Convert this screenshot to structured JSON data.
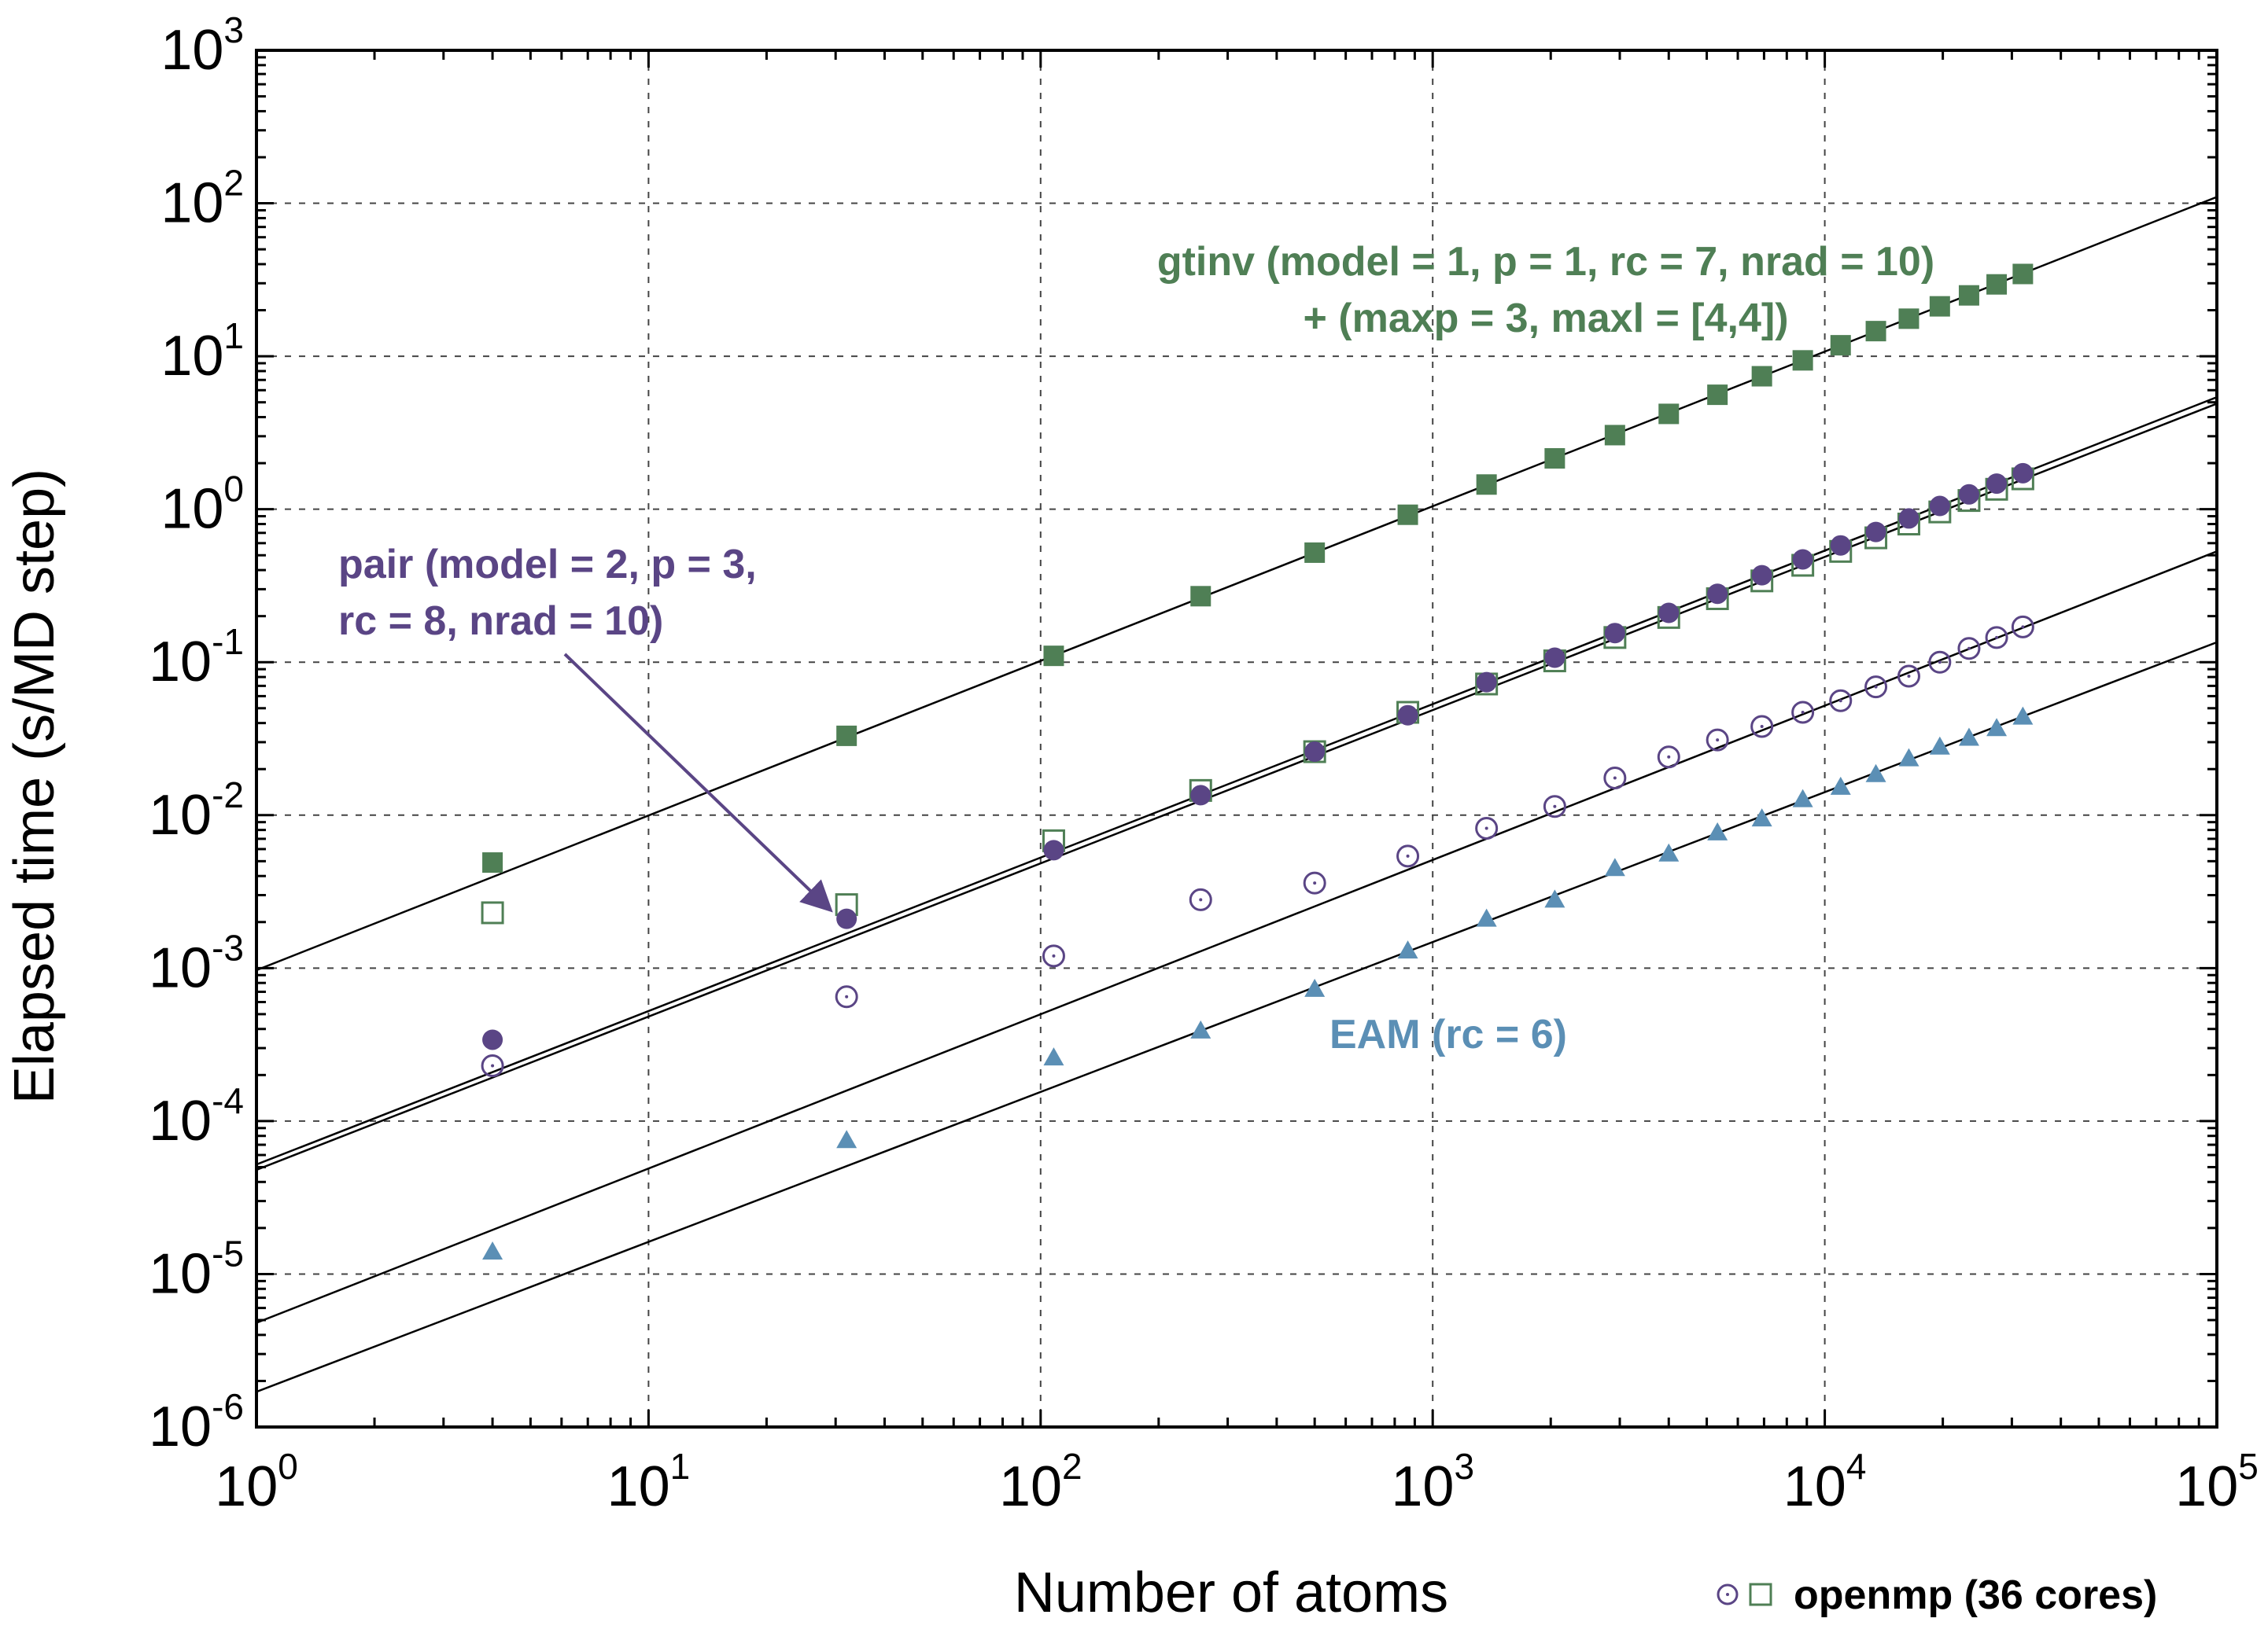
{
  "chart_data": {
    "type": "scatter",
    "xscale": "log",
    "yscale": "log",
    "xlim": [
      1,
      100000
    ],
    "ylim": [
      1e-06,
      1000
    ],
    "xlabel": "Number of atoms",
    "ylabel": "Elapsed time (s/MD step)",
    "grid": true,
    "x_ticks": [
      {
        "base": "10",
        "exp": "0",
        "value": 1
      },
      {
        "base": "10",
        "exp": "1",
        "value": 10
      },
      {
        "base": "10",
        "exp": "2",
        "value": 100
      },
      {
        "base": "10",
        "exp": "3",
        "value": 1000
      },
      {
        "base": "10",
        "exp": "4",
        "value": 10000
      },
      {
        "base": "10",
        "exp": "5",
        "value": 100000
      }
    ],
    "y_ticks": [
      {
        "base": "10",
        "exp": "-6",
        "value": 1e-06
      },
      {
        "base": "10",
        "exp": "-5",
        "value": 1e-05
      },
      {
        "base": "10",
        "exp": "-4",
        "value": 0.0001
      },
      {
        "base": "10",
        "exp": "-3",
        "value": 0.001
      },
      {
        "base": "10",
        "exp": "-2",
        "value": 0.01
      },
      {
        "base": "10",
        "exp": "-1",
        "value": 0.1
      },
      {
        "base": "10",
        "exp": "0",
        "value": 1
      },
      {
        "base": "10",
        "exp": "1",
        "value": 10
      },
      {
        "base": "10",
        "exp": "2",
        "value": 100
      },
      {
        "base": "10",
        "exp": "3",
        "value": 1000
      }
    ],
    "series": [
      {
        "key": "gtinv-serial",
        "marker": "square-filled",
        "color": "#4f7f55",
        "points": [
          [
            4,
            0.0049
          ],
          [
            32,
            0.033
          ],
          [
            108,
            0.11
          ],
          [
            256,
            0.27
          ],
          [
            500,
            0.52
          ],
          [
            864,
            0.92
          ],
          [
            1372,
            1.45
          ],
          [
            2048,
            2.15
          ],
          [
            2916,
            3.05
          ],
          [
            4000,
            4.2
          ],
          [
            5324,
            5.6
          ],
          [
            6912,
            7.4
          ],
          [
            8788,
            9.4
          ],
          [
            10976,
            11.8
          ],
          [
            13500,
            14.6
          ],
          [
            16384,
            17.6
          ],
          [
            19652,
            21.2
          ],
          [
            23328,
            25.0
          ],
          [
            27436,
            29.5
          ],
          [
            32000,
            34.5
          ]
        ]
      },
      {
        "key": "gtinv-openmp",
        "marker": "square-open",
        "color": "#4f7f55",
        "points": [
          [
            4,
            0.0023
          ],
          [
            32,
            0.0026
          ],
          [
            108,
            0.0068
          ],
          [
            256,
            0.0145
          ],
          [
            500,
            0.026
          ],
          [
            864,
            0.047
          ],
          [
            1372,
            0.072
          ],
          [
            2048,
            0.102
          ],
          [
            2916,
            0.145
          ],
          [
            4000,
            0.196
          ],
          [
            5324,
            0.26
          ],
          [
            6912,
            0.34
          ],
          [
            8788,
            0.43
          ],
          [
            10976,
            0.53
          ],
          [
            13500,
            0.65
          ],
          [
            16384,
            0.8
          ],
          [
            19652,
            0.96
          ],
          [
            23328,
            1.14
          ],
          [
            27436,
            1.35
          ],
          [
            32000,
            1.58
          ]
        ]
      },
      {
        "key": "pair-serial",
        "marker": "circle-filled",
        "color": "#5a4585",
        "points": [
          [
            4,
            0.00034
          ],
          [
            32,
            0.0021
          ],
          [
            108,
            0.0059
          ],
          [
            256,
            0.0135
          ],
          [
            500,
            0.026
          ],
          [
            864,
            0.045
          ],
          [
            1372,
            0.074
          ],
          [
            2048,
            0.107
          ],
          [
            2916,
            0.155
          ],
          [
            4000,
            0.21
          ],
          [
            5324,
            0.28
          ],
          [
            6912,
            0.37
          ],
          [
            8788,
            0.47
          ],
          [
            10976,
            0.58
          ],
          [
            13500,
            0.71
          ],
          [
            16384,
            0.87
          ],
          [
            19652,
            1.05
          ],
          [
            23328,
            1.25
          ],
          [
            27436,
            1.47
          ],
          [
            32000,
            1.72
          ]
        ]
      },
      {
        "key": "pair-openmp",
        "marker": "circle-open-dot",
        "color": "#5a4585",
        "points": [
          [
            4,
            0.00023
          ],
          [
            32,
            0.00065
          ],
          [
            108,
            0.0012
          ],
          [
            256,
            0.0028
          ],
          [
            500,
            0.0036
          ],
          [
            864,
            0.0054
          ],
          [
            1372,
            0.0082
          ],
          [
            2048,
            0.0114
          ],
          [
            2916,
            0.0175
          ],
          [
            4000,
            0.024
          ],
          [
            5324,
            0.031
          ],
          [
            6912,
            0.038
          ],
          [
            8788,
            0.047
          ],
          [
            10976,
            0.056
          ],
          [
            13500,
            0.069
          ],
          [
            16384,
            0.081
          ],
          [
            19652,
            0.1
          ],
          [
            23328,
            0.123
          ],
          [
            27436,
            0.145
          ],
          [
            32000,
            0.17
          ]
        ]
      },
      {
        "key": "eam",
        "marker": "triangle-filled",
        "color": "#5b8fb5",
        "points": [
          [
            4,
            1.4e-05
          ],
          [
            32,
            7.5e-05
          ],
          [
            108,
            0.00026
          ],
          [
            256,
            0.00039
          ],
          [
            500,
            0.00073
          ],
          [
            864,
            0.0013
          ],
          [
            1372,
            0.0021
          ],
          [
            2048,
            0.0028
          ],
          [
            2916,
            0.0045
          ],
          [
            4000,
            0.0056
          ],
          [
            5324,
            0.0077
          ],
          [
            6912,
            0.0095
          ],
          [
            8788,
            0.0127
          ],
          [
            10976,
            0.0153
          ],
          [
            13500,
            0.0185
          ],
          [
            16384,
            0.0235
          ],
          [
            19652,
            0.028
          ],
          [
            23328,
            0.032
          ],
          [
            27436,
            0.037
          ],
          [
            32000,
            0.044
          ]
        ]
      }
    ],
    "fit_lines": [
      {
        "key": "fit-gtinv",
        "x": [
          1,
          100000
        ],
        "y": [
          0.00097,
          110
        ]
      },
      {
        "key": "fit-pair-serial",
        "x": [
          1,
          100000
        ],
        "y": [
          5.2e-05,
          5.4
        ]
      },
      {
        "key": "fit-gtinv-openmp",
        "x": [
          1,
          100000
        ],
        "y": [
          4.8e-05,
          4.9
        ]
      },
      {
        "key": "fit-pair-openmp",
        "x": [
          1,
          100000
        ],
        "y": [
          4.8e-06,
          0.53
        ]
      },
      {
        "key": "fit-eam",
        "x": [
          1,
          100000
        ],
        "y": [
          1.7e-06,
          0.135
        ]
      }
    ],
    "annotations": [
      {
        "key": "gtinv-label",
        "lines": [
          "gtinv (model = 1, p = 1, rc = 7, nrad = 10)",
          "+ (maxp = 3, maxl = [4,4])"
        ],
        "color": "#4f7f55"
      },
      {
        "key": "pair-label",
        "lines": [
          "pair (model = 2, p = 3,",
          "rc = 8, nrad = 10)"
        ],
        "color": "#5a4585",
        "arrow_to": [
          32,
          0.0021
        ]
      },
      {
        "key": "eam-label",
        "lines": [
          "EAM (rc = 6)"
        ],
        "color": "#5b8fb5"
      }
    ],
    "legend": {
      "placement": "bottom-right, below plot",
      "text": "openmp (36 cores)",
      "markers": [
        "circle-open-dot",
        "square-open"
      ]
    }
  }
}
